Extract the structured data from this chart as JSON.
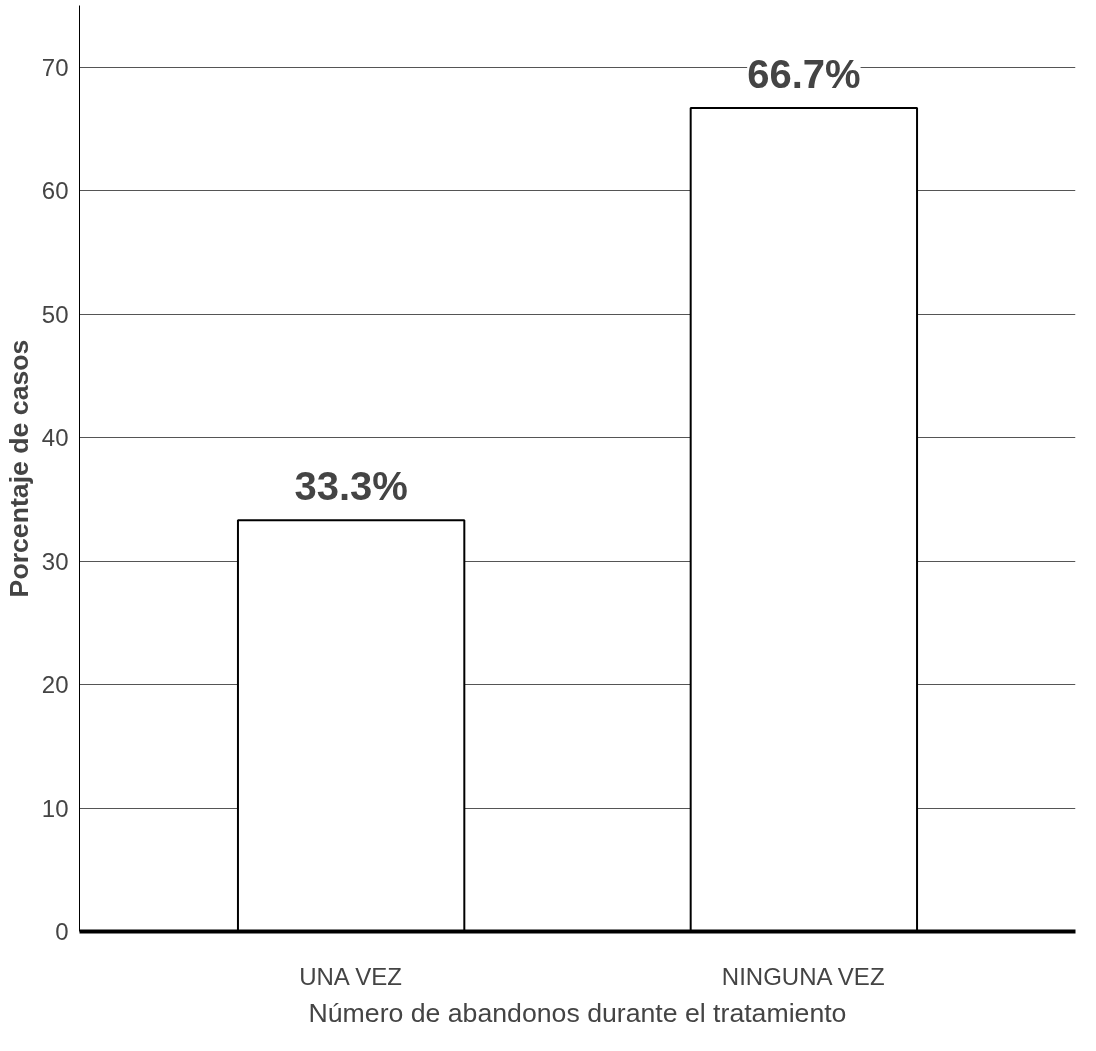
{
  "chart_data": {
    "type": "bar",
    "xlabel": "Número de abandonos durante el tratamiento",
    "ylabel": "Porcentaje de casos",
    "categories": [
      "UNA VEZ",
      "NINGUNA VEZ"
    ],
    "values": [
      33.3,
      66.7
    ],
    "value_labels": [
      "33.3%",
      "66.7%"
    ],
    "color": "#ffffff",
    "ylim": [
      0,
      75
    ],
    "yticks": [
      0,
      10,
      20,
      30,
      40,
      50,
      60,
      70
    ],
    "grid": "y"
  }
}
